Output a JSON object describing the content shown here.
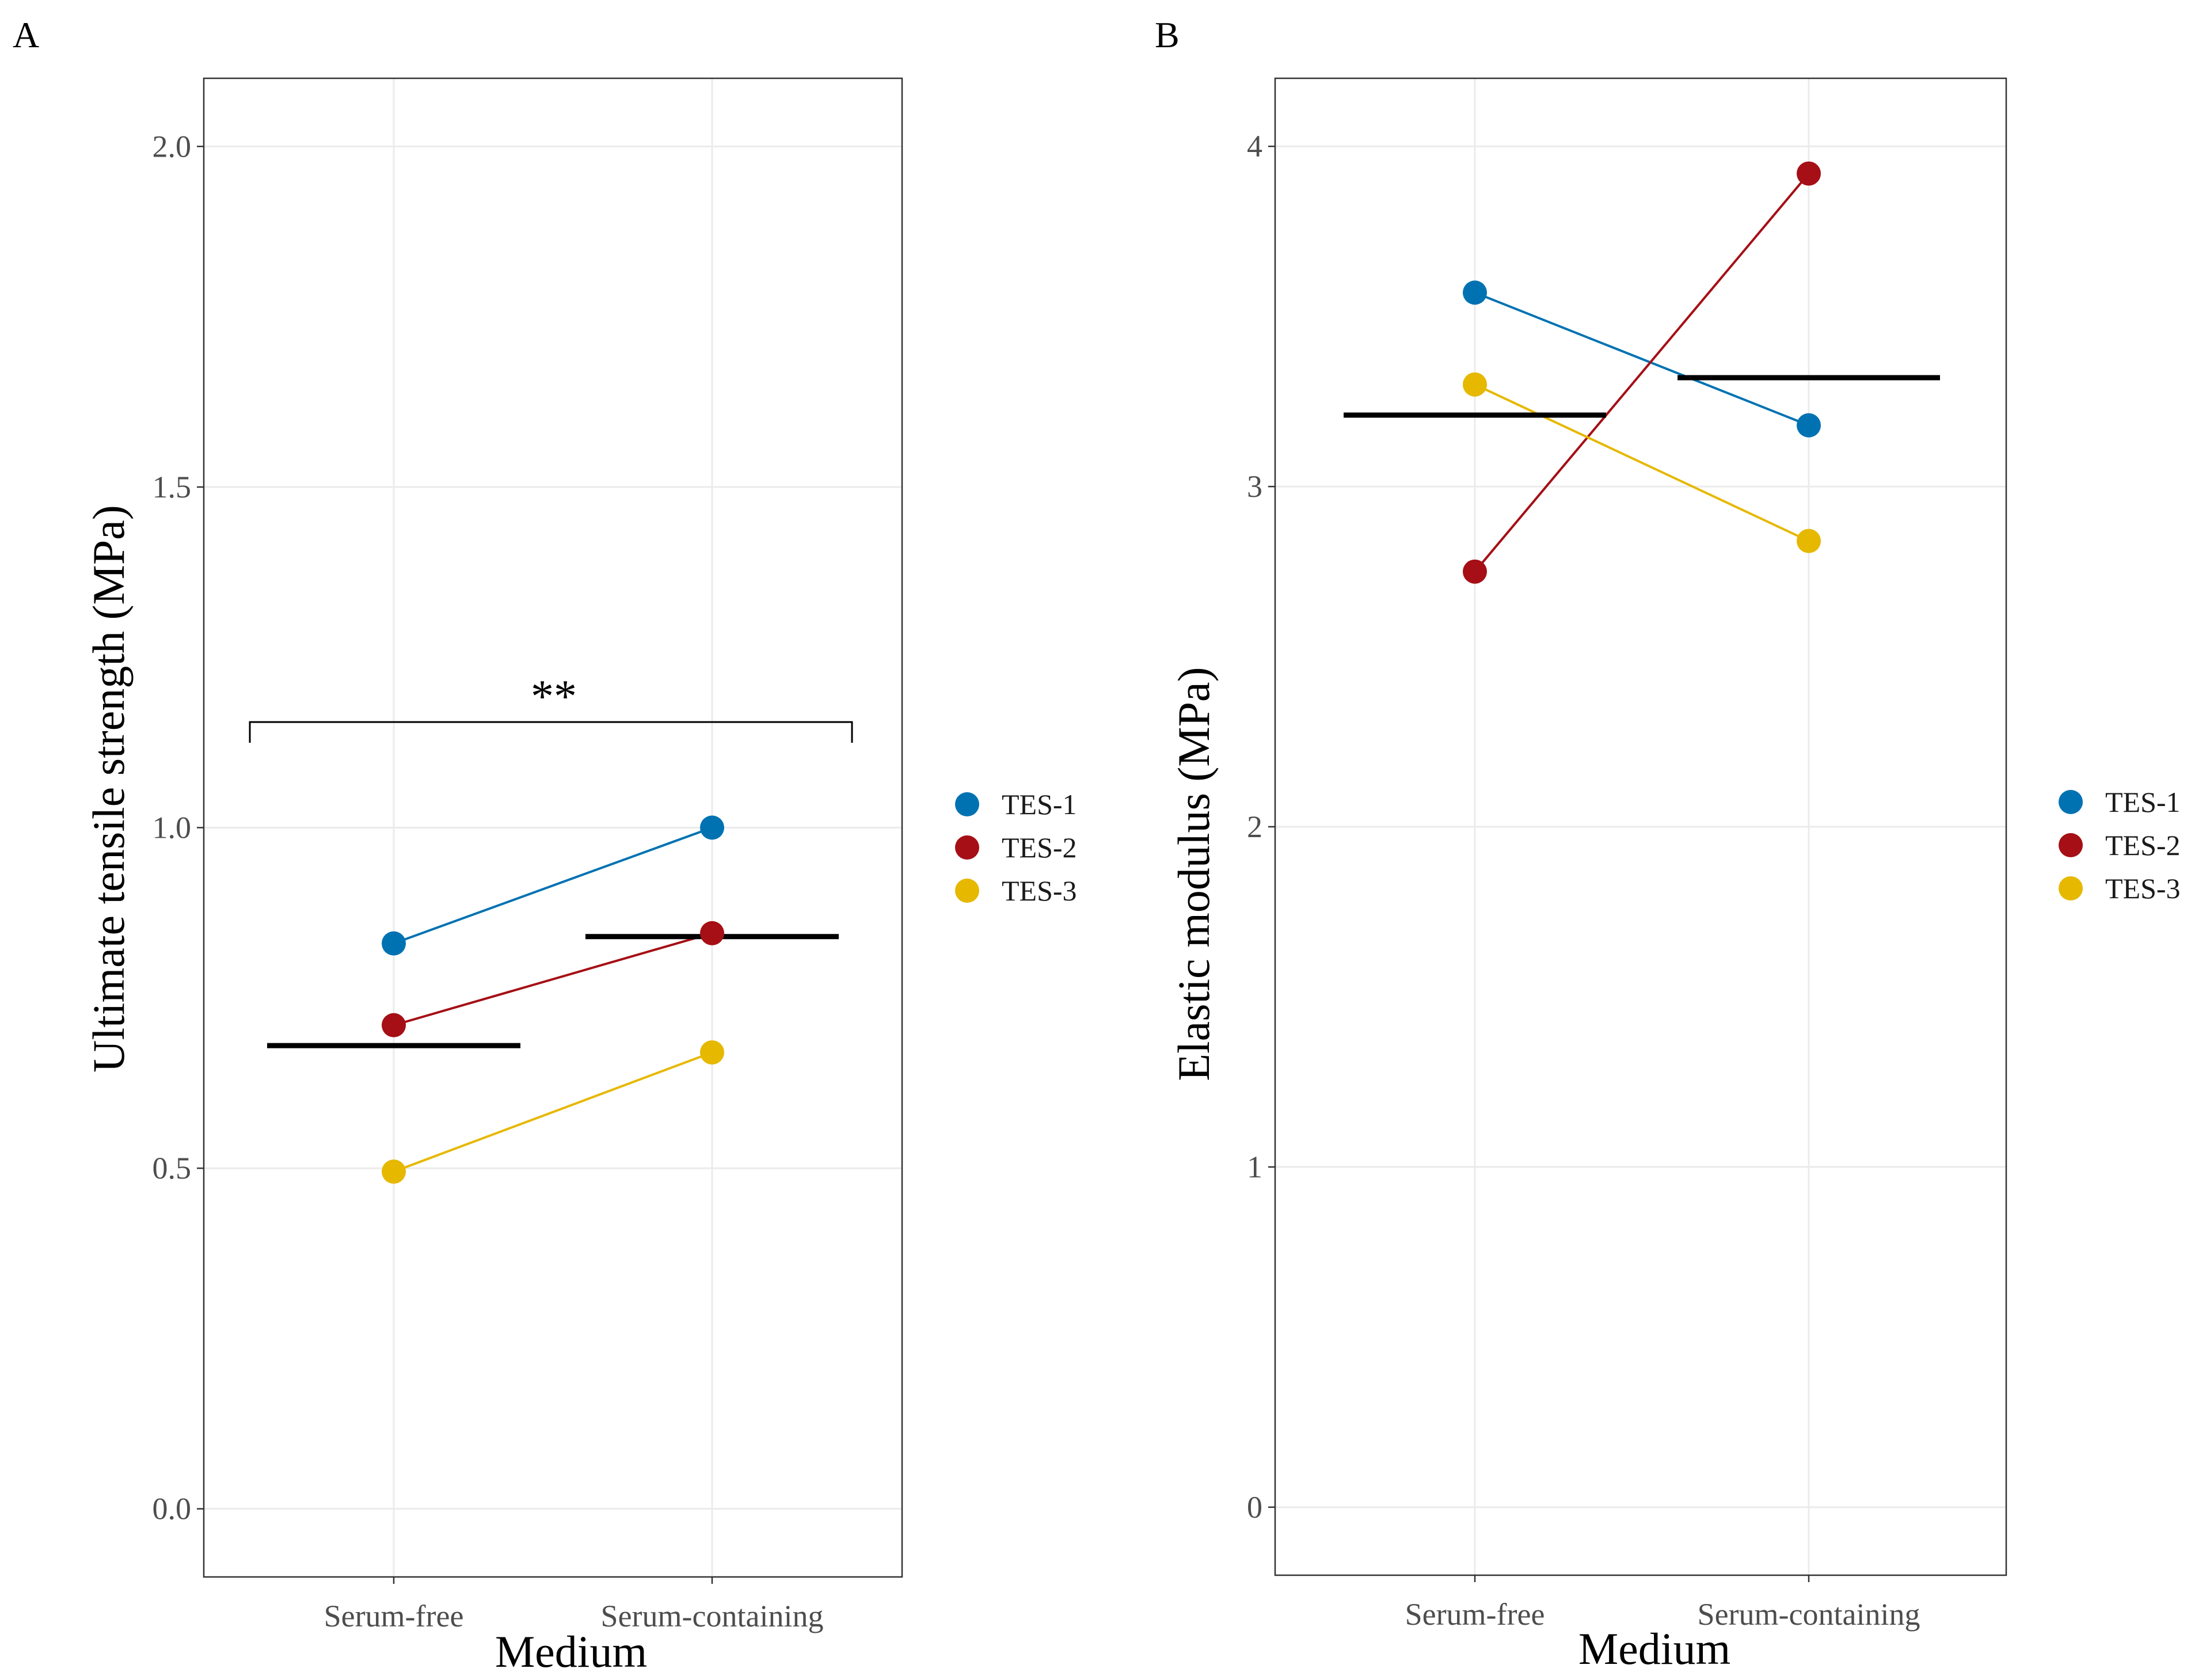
{
  "chart_data": [
    {
      "panel": "A",
      "type": "scatter",
      "title": "",
      "xlabel": "Medium",
      "ylabel": "Ultimate tensile strength (MPa)",
      "categories": [
        "Serum-free",
        "Serum-containing"
      ],
      "ylim": [
        -0.1,
        2.1
      ],
      "yticks": [
        0.0,
        0.5,
        1.0,
        1.5,
        2.0
      ],
      "ytick_labels": [
        "0.0",
        "0.5",
        "1.0",
        "1.5",
        "2.0"
      ],
      "grid": true,
      "series": [
        {
          "name": "TES-1",
          "color": "#0072B2",
          "values": [
            0.83,
            1.0
          ]
        },
        {
          "name": "TES-2",
          "color": "#A50F15",
          "values": [
            0.71,
            0.845
          ]
        },
        {
          "name": "TES-3",
          "color": "#E6B800",
          "values": [
            0.495,
            0.67
          ]
        }
      ],
      "means": [
        0.68,
        0.84
      ],
      "significance": {
        "label": "**",
        "y": 1.155
      }
    },
    {
      "panel": "B",
      "type": "scatter",
      "title": "",
      "xlabel": "Medium",
      "ylabel": "Elastic modulus (MPa)",
      "categories": [
        "Serum-free",
        "Serum-containing"
      ],
      "ylim": [
        -0.2,
        4.2
      ],
      "yticks": [
        0,
        1,
        2,
        3,
        4
      ],
      "ytick_labels": [
        "0",
        "1",
        "2",
        "3",
        "4"
      ],
      "grid": true,
      "series": [
        {
          "name": "TES-1",
          "color": "#0072B2",
          "values": [
            3.57,
            3.18
          ]
        },
        {
          "name": "TES-2",
          "color": "#A50F15",
          "values": [
            2.75,
            3.92
          ]
        },
        {
          "name": "TES-3",
          "color": "#E6B800",
          "values": [
            3.3,
            2.84
          ]
        }
      ],
      "means": [
        3.21,
        3.32
      ]
    }
  ]
}
